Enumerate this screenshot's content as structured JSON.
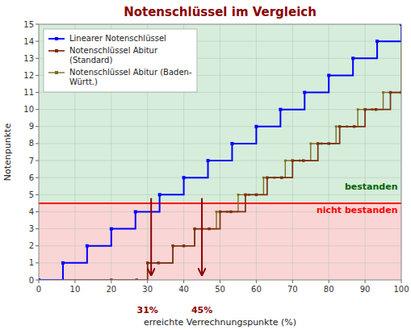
{
  "chart_data": {
    "type": "step",
    "title": "Notenschlüssel im Vergleich",
    "title_color": "#8b0000",
    "x_label": "erreichte Verrechnungspunkte (%)",
    "y_label": "Notenpunkte",
    "xlim": [
      0,
      100
    ],
    "ylim": [
      0,
      15
    ],
    "xticks": [
      0,
      10,
      20,
      30,
      40,
      50,
      60,
      70,
      80,
      90,
      100
    ],
    "yticks": [
      0,
      1,
      2,
      3,
      4,
      5,
      6,
      7,
      8,
      9,
      10,
      11,
      12,
      13,
      14,
      15
    ],
    "grid": true,
    "legend": "upper left",
    "bands": [
      {
        "from": 4.5,
        "to": 15,
        "color": "#d6eddc"
      },
      {
        "from": 0,
        "to": 4.5,
        "color": "#fad5d5"
      }
    ],
    "reference_lines": [
      {
        "y": 4.5,
        "color": "#ff0000"
      }
    ],
    "series": [
      {
        "name": "Linearer Notenschlüssel",
        "color": "#0000ff",
        "marker": "square",
        "x": [
          0,
          6.67,
          13.33,
          20.0,
          26.67,
          33.33,
          40.0,
          46.67,
          53.33,
          60.0,
          66.67,
          73.33,
          80.0,
          86.67,
          93.33,
          100.0
        ],
        "values": [
          0,
          1,
          2,
          3,
          4,
          5,
          6,
          7,
          8,
          9,
          10,
          11,
          12,
          13,
          14,
          15
        ]
      },
      {
        "name": "Notenschlüssel Abitur\n(Standard)",
        "color": "#7b3010",
        "marker": "square",
        "x": [
          0,
          20,
          27,
          30,
          33,
          37,
          40,
          43,
          47,
          50,
          53,
          57,
          60,
          63,
          67,
          70,
          73,
          77,
          80,
          83,
          87,
          90,
          93,
          97,
          100
        ],
        "values": [
          0,
          0,
          0,
          1,
          1,
          2,
          2,
          3,
          3,
          4,
          4,
          5,
          5,
          6,
          6,
          7,
          7,
          8,
          8,
          9,
          9,
          10,
          10,
          11,
          11
        ]
      },
      {
        "name": "Notenschlüssel Abitur (Baden-\nWürtt.)",
        "color": "#7b7020",
        "marker": "square",
        "x": [
          0,
          20,
          27,
          30,
          33,
          37,
          40,
          43,
          45,
          49,
          52,
          55,
          58,
          62,
          65,
          68,
          72,
          75,
          78,
          82,
          85,
          88,
          92,
          95,
          100
        ],
        "values": [
          0,
          0,
          0,
          1,
          1,
          2,
          2,
          3,
          3,
          4,
          4,
          5,
          5,
          6,
          6,
          7,
          7,
          8,
          8,
          9,
          9,
          10,
          10,
          11,
          15
        ]
      }
    ],
    "arrows": [
      {
        "x": 31,
        "y_from": 4.8,
        "y_to": 0.3,
        "color": "#8b0000"
      },
      {
        "x": 45,
        "y_from": 4.8,
        "y_to": 0.3,
        "color": "#8b0000"
      }
    ],
    "annotations": [
      {
        "text": "bestanden",
        "x": 99,
        "y": 5.15,
        "color": "#006400"
      },
      {
        "text": "nicht bestanden",
        "x": 99,
        "y": 4.35,
        "color": "#ff0000"
      },
      {
        "text": "31%",
        "x": 30,
        "y": -1.5,
        "color": "#8b0000"
      },
      {
        "text": "45%",
        "x": 45,
        "y": -1.5,
        "color": "#8b0000"
      }
    ]
  }
}
